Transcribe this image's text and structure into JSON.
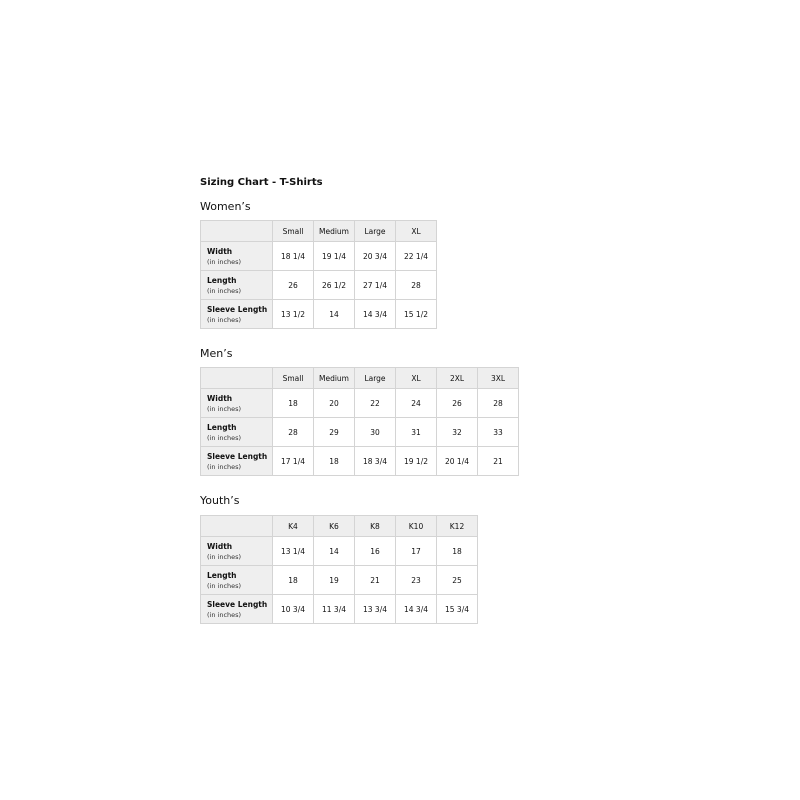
{
  "title": "Sizing Chart - T-Shirts",
  "unit": "(in inches)",
  "tables": [
    {
      "name": "Women’s",
      "sizes": [
        "Small",
        "Medium",
        "Large",
        "XL"
      ],
      "rows": [
        {
          "label": "Width",
          "values": [
            "18 1/4",
            "19 1/4",
            "20 3/4",
            "22 1/4"
          ]
        },
        {
          "label": "Length",
          "values": [
            "26",
            "26 1/2",
            "27 1/4",
            "28"
          ]
        },
        {
          "label": "Sleeve Length",
          "values": [
            "13 1/2",
            "14",
            "14 3/4",
            "15 1/2"
          ]
        }
      ]
    },
    {
      "name": "Men’s",
      "sizes": [
        "Small",
        "Medium",
        "Large",
        "XL",
        "2XL",
        "3XL"
      ],
      "rows": [
        {
          "label": "Width",
          "values": [
            "18",
            "20",
            "22",
            "24",
            "26",
            "28"
          ]
        },
        {
          "label": "Length",
          "values": [
            "28",
            "29",
            "30",
            "31",
            "32",
            "33"
          ]
        },
        {
          "label": "Sleeve Length",
          "values": [
            "17 1/4",
            "18",
            "18 3/4",
            "19 1/2",
            "20 1/4",
            "21"
          ]
        }
      ]
    },
    {
      "name": "Youth’s",
      "sizes": [
        "K4",
        "K6",
        "K8",
        "K10",
        "K12"
      ],
      "rows": [
        {
          "label": "Width",
          "values": [
            "13 1/4",
            "14",
            "16",
            "17",
            "18"
          ]
        },
        {
          "label": "Length",
          "values": [
            "18",
            "19",
            "21",
            "23",
            "25"
          ]
        },
        {
          "label": "Sleeve Length",
          "values": [
            "10 3/4",
            "11 3/4",
            "13 3/4",
            "14 3/4",
            "15 3/4"
          ]
        }
      ]
    }
  ]
}
